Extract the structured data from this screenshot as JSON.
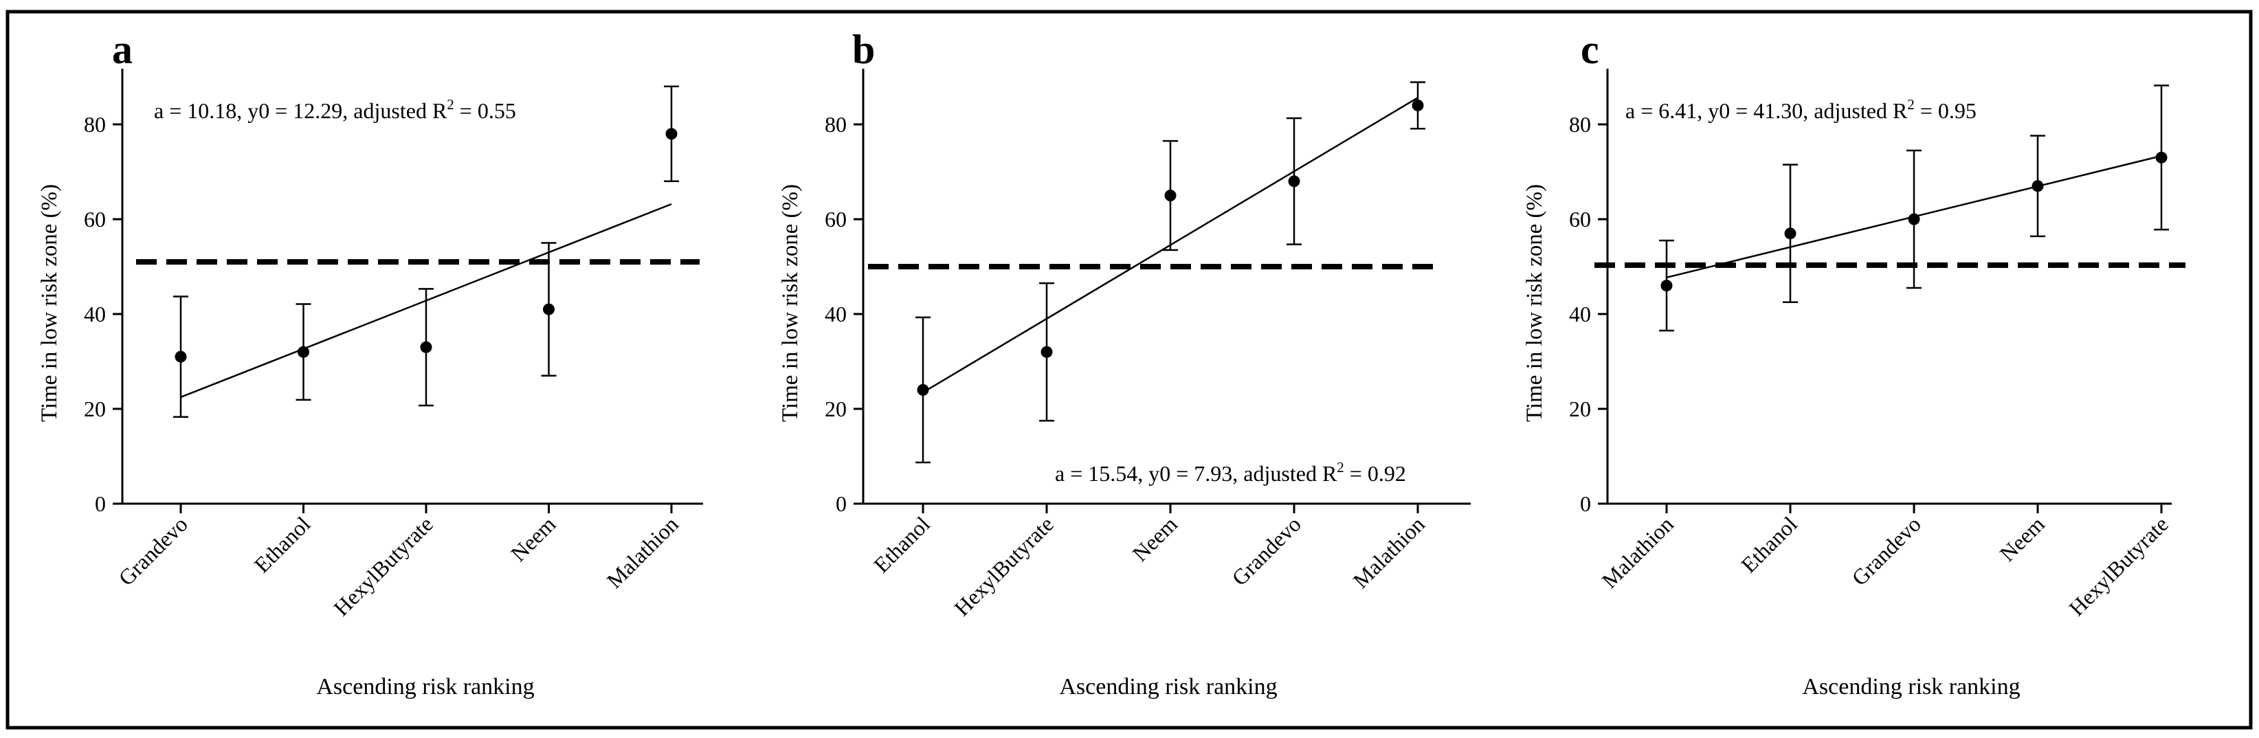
{
  "chart_data": [
    {
      "type": "scatter",
      "panel": "a",
      "ylabel": "Time in low risk zone (%)",
      "xlabel": "Ascending risk ranking",
      "ylim": [
        0,
        90
      ],
      "yticks": [
        0,
        20,
        40,
        60,
        80
      ],
      "categories": [
        "Grandevo",
        "Ethanol",
        "HexylButyrate",
        "Neem",
        "Malathion"
      ],
      "values": [
        31,
        32,
        33,
        41,
        78
      ],
      "errors": [
        12.7,
        10.1,
        12.3,
        14,
        10
      ],
      "fit": {
        "a": 10.18,
        "y0": 12.29
      },
      "reference_y": 51,
      "equation": {
        "text": "a = 10.18, y0 = 12.29, adjusted R",
        "sup": "2",
        "tail": " = 0.55"
      }
    },
    {
      "type": "scatter",
      "panel": "b",
      "ylabel": "Time in low risk zone (%)",
      "xlabel": "Ascending risk ranking",
      "ylim": [
        0,
        90
      ],
      "yticks": [
        0,
        20,
        40,
        60,
        80
      ],
      "categories": [
        "Ethanol",
        "HexylButyrate",
        "Neem",
        "Grandevo",
        "Malathion"
      ],
      "values": [
        24,
        32,
        65,
        68,
        84
      ],
      "errors": [
        15.3,
        14.5,
        11.5,
        13.3,
        4.9
      ],
      "fit": {
        "a": 15.54,
        "y0": 7.93
      },
      "reference_y": 50,
      "equation": {
        "text": "a = 15.54, y0 = 7.93, adjusted R",
        "sup": "2",
        "tail": " = 0.92"
      }
    },
    {
      "type": "scatter",
      "panel": "c",
      "ylabel": "Time in low risk zone (%)",
      "xlabel": "Ascending risk ranking",
      "ylim": [
        0,
        90
      ],
      "yticks": [
        0,
        20,
        40,
        60,
        80
      ],
      "categories": [
        "Malathion",
        "Ethanol",
        "Grandevo",
        "Neem",
        "HexylButyrate"
      ],
      "values": [
        46,
        57,
        60,
        67,
        73
      ],
      "errors": [
        9.5,
        14.5,
        14.5,
        10.6,
        15.2
      ],
      "fit": {
        "a": 6.41,
        "y0": 41.3
      },
      "reference_y": 50.3,
      "equation": {
        "text": "a = 6.41, y0 = 41.30, adjusted R",
        "sup": "2",
        "tail": " = 0.95"
      }
    }
  ]
}
